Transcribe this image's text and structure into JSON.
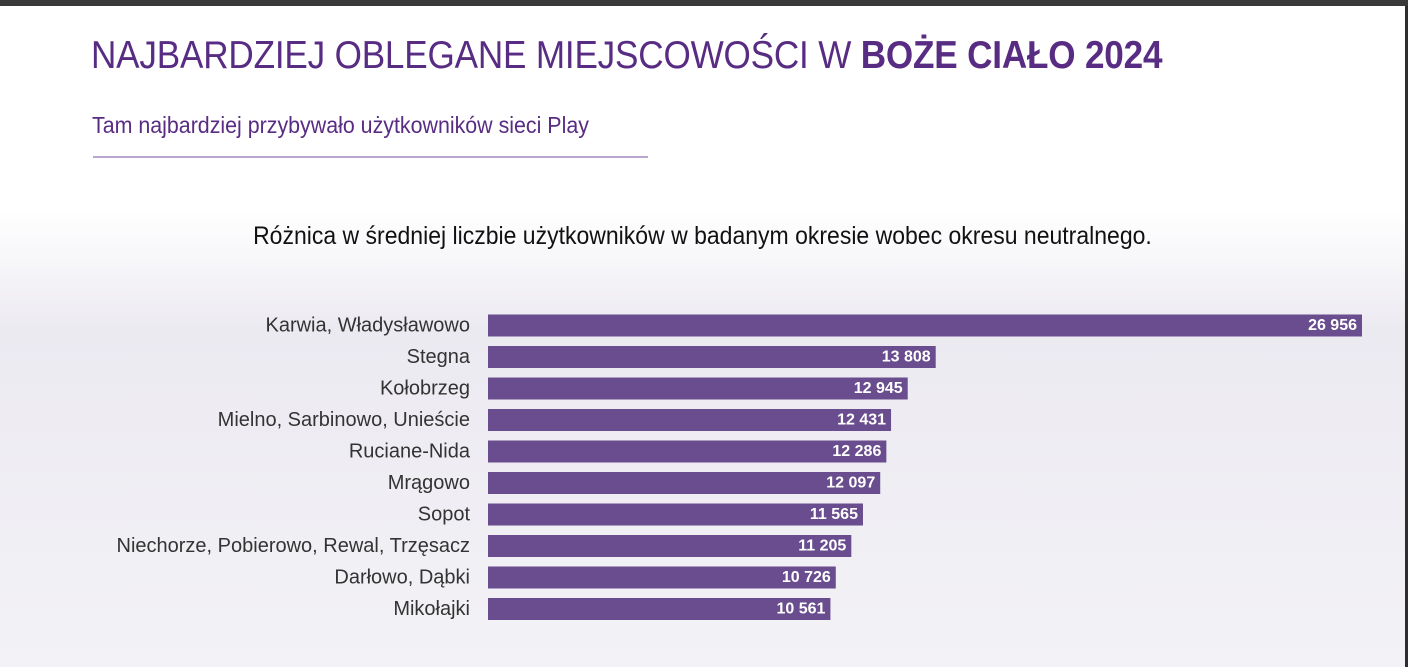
{
  "header": {
    "title_regular": "NAJBARDZIEJ OBLEGANE MIEJSCOWOŚCI W ",
    "title_bold": "BOŻE CIAŁO 2024",
    "subtitle": "Tam najbardziej przybywało użytkowników sieci Play"
  },
  "colors": {
    "brand": "#582c83",
    "bar": "#694d8e",
    "bar_label": "#ffffff",
    "category_label": "#333333"
  },
  "chart_data": {
    "type": "bar",
    "orientation": "horizontal",
    "title": "Różnica w średniej liczbie użytkowników w badanym okresie wobec okresu neutralnego.",
    "categories": [
      "Karwia, Władysławowo",
      "Stegna",
      "Kołobrzeg",
      "Mielno, Sarbinowo, Unieście",
      "Ruciane-Nida",
      "Mrągowo",
      "Sopot",
      "Niechorze, Pobierowo, Rewal, Trzęsacz",
      "Darłowo, Dąbki",
      "Mikołajki"
    ],
    "values": [
      26956,
      13808,
      12945,
      12431,
      12286,
      12097,
      11565,
      11205,
      10726,
      10561
    ],
    "value_labels": [
      "26 956",
      "13 808",
      "12 945",
      "12 431",
      "12 286",
      "12 097",
      "11 565",
      "11 205",
      "10 726",
      "10 561"
    ],
    "xlim": [
      0,
      26956
    ],
    "grid": false,
    "legend": "none"
  }
}
